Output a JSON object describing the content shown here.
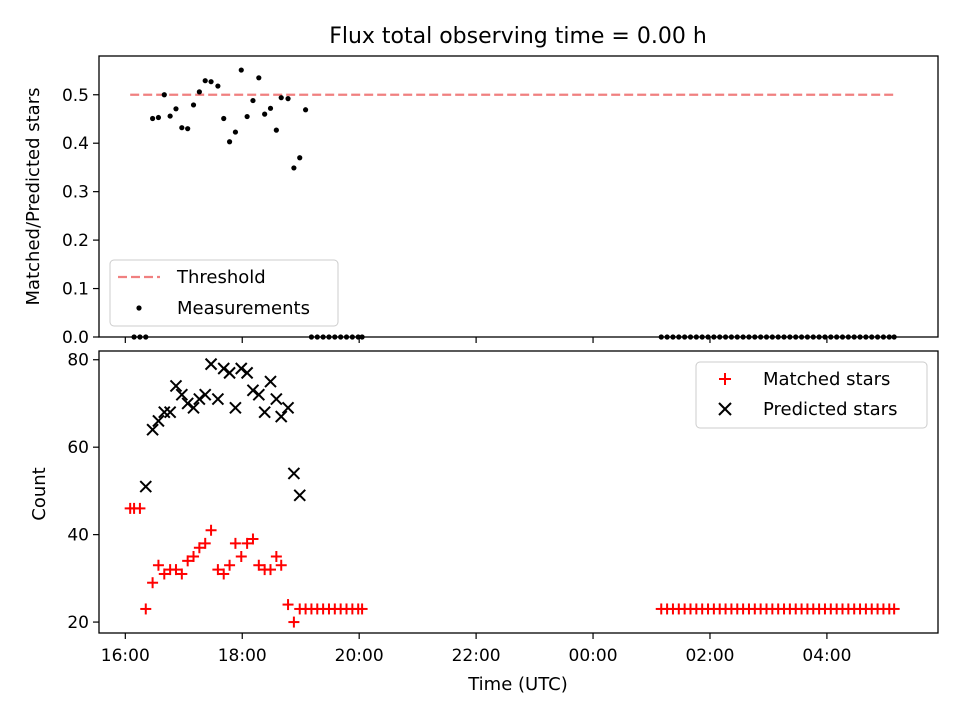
{
  "figure": {
    "title": "Flux total observing time = 0.00 h"
  },
  "chart_data": [
    {
      "type": "scatter",
      "panel": "top",
      "ylabel": "Matched/Predicted stars",
      "ylim": [
        0,
        0.58
      ],
      "yticks": [
        0.0,
        0.1,
        0.2,
        0.3,
        0.4,
        0.5
      ],
      "ytick_labels": [
        "0.0",
        "0.1",
        "0.2",
        "0.3",
        "0.4",
        "0.5"
      ],
      "grid": false,
      "legend": {
        "placement": "lower-left",
        "entries": [
          "Threshold",
          "Measurements"
        ]
      },
      "threshold": {
        "name": "Threshold",
        "value": 0.5,
        "x_start": "16:05",
        "x_end": "05:11",
        "color": "#f08080",
        "style": "dashed"
      },
      "series": [
        {
          "name": "Measurements",
          "marker": "dot",
          "color": "#000000",
          "x": [
            "16:09",
            "16:15",
            "16:21",
            "16:28",
            "16:34",
            "16:40",
            "16:46",
            "16:52",
            "16:58",
            "17:04",
            "17:10",
            "17:16",
            "17:22",
            "17:28",
            "17:35",
            "17:41",
            "17:47",
            "17:53",
            "17:59",
            "18:05",
            "18:11",
            "18:17",
            "18:23",
            "18:29",
            "18:35",
            "18:40",
            "18:47",
            "18:53",
            "18:59",
            "19:05",
            "19:11",
            "19:17",
            "19:23",
            "19:29",
            "19:35",
            "19:41",
            "19:47",
            "19:53",
            "19:59",
            "20:03",
            "01:10",
            "01:16",
            "01:22",
            "01:28",
            "01:34",
            "01:40",
            "01:46",
            "01:52",
            "01:58",
            "02:04",
            "02:10",
            "02:16",
            "02:22",
            "02:28",
            "02:34",
            "02:40",
            "02:46",
            "02:52",
            "02:58",
            "03:04",
            "03:10",
            "03:16",
            "03:22",
            "03:28",
            "03:34",
            "03:40",
            "03:46",
            "03:52",
            "03:58",
            "04:04",
            "04:10",
            "04:16",
            "04:22",
            "04:28",
            "04:34",
            "04:40",
            "04:46",
            "04:52",
            "04:58",
            "05:04",
            "05:09"
          ],
          "y": [
            0.0,
            0.0,
            0.0,
            0.451,
            0.453,
            0.5,
            0.456,
            0.471,
            0.432,
            0.43,
            0.479,
            0.506,
            0.529,
            0.527,
            0.518,
            0.451,
            0.403,
            0.423,
            0.551,
            0.455,
            0.488,
            0.535,
            0.46,
            0.472,
            0.427,
            0.494,
            0.492,
            0.349,
            0.37,
            0.469,
            0.0,
            0.0,
            0.0,
            0.0,
            0.0,
            0.0,
            0.0,
            0.0,
            0.0,
            0.0,
            0.0,
            0.0,
            0.0,
            0.0,
            0.0,
            0.0,
            0.0,
            0.0,
            0.0,
            0.0,
            0.0,
            0.0,
            0.0,
            0.0,
            0.0,
            0.0,
            0.0,
            0.0,
            0.0,
            0.0,
            0.0,
            0.0,
            0.0,
            0.0,
            0.0,
            0.0,
            0.0,
            0.0,
            0.0,
            0.0,
            0.0,
            0.0,
            0.0,
            0.0,
            0.0,
            0.0,
            0.0,
            0.0,
            0.0,
            0.0,
            0.0
          ]
        }
      ]
    },
    {
      "type": "scatter",
      "panel": "bottom",
      "xlabel": "Time (UTC)",
      "ylabel": "Count",
      "ylim": [
        17.5,
        82
      ],
      "yticks": [
        20,
        40,
        60,
        80
      ],
      "ytick_labels": [
        "20",
        "40",
        "60",
        "80"
      ],
      "xlim": [
        "15:33",
        "05:54"
      ],
      "xticks": [
        "16:00",
        "18:00",
        "20:00",
        "22:00",
        "00:00",
        "02:00",
        "04:00"
      ],
      "xtick_labels": [
        "16:00",
        "18:00",
        "20:00",
        "22:00",
        "00:00",
        "02:00",
        "04:00"
      ],
      "grid": false,
      "legend": {
        "placement": "top-right",
        "entries": [
          "Matched stars",
          "Predicted stars"
        ]
      },
      "series": [
        {
          "name": "Matched stars",
          "marker": "plus",
          "color": "#ff0000",
          "x": [
            "16:05",
            "16:09",
            "16:15",
            "16:21",
            "16:28",
            "16:34",
            "16:40",
            "16:46",
            "16:52",
            "16:58",
            "17:04",
            "17:10",
            "17:16",
            "17:22",
            "17:28",
            "17:35",
            "17:41",
            "17:47",
            "17:53",
            "17:59",
            "18:05",
            "18:11",
            "18:17",
            "18:23",
            "18:29",
            "18:35",
            "18:40",
            "18:47",
            "18:53",
            "18:59",
            "19:05",
            "19:11",
            "19:17",
            "19:23",
            "19:29",
            "19:35",
            "19:41",
            "19:47",
            "19:53",
            "19:59",
            "20:03",
            "01:10",
            "01:16",
            "01:22",
            "01:28",
            "01:34",
            "01:40",
            "01:46",
            "01:52",
            "01:58",
            "02:04",
            "02:10",
            "02:16",
            "02:22",
            "02:28",
            "02:34",
            "02:40",
            "02:46",
            "02:52",
            "02:58",
            "03:04",
            "03:10",
            "03:16",
            "03:22",
            "03:28",
            "03:34",
            "03:40",
            "03:46",
            "03:52",
            "03:58",
            "04:04",
            "04:10",
            "04:16",
            "04:22",
            "04:28",
            "04:34",
            "04:40",
            "04:46",
            "04:52",
            "04:58",
            "05:04",
            "05:09"
          ],
          "y": [
            46,
            46,
            46,
            23,
            29,
            33,
            31,
            32,
            32,
            31,
            34,
            35,
            37,
            38,
            41,
            32,
            31,
            33,
            38,
            35,
            38,
            39,
            33,
            32,
            32,
            35,
            33,
            24,
            20,
            23,
            23,
            23,
            23,
            23,
            23,
            23,
            23,
            23,
            23,
            23,
            23,
            23,
            23,
            23,
            23,
            23,
            23,
            23,
            23,
            23,
            23,
            23,
            23,
            23,
            23,
            23,
            23,
            23,
            23,
            23,
            23,
            23,
            23,
            23,
            23,
            23,
            23,
            23,
            23,
            23,
            23,
            23,
            23,
            23,
            23,
            23,
            23,
            23,
            23,
            23,
            23,
            23
          ]
        },
        {
          "name": "Predicted stars",
          "marker": "x",
          "color": "#000000",
          "x": [
            "16:21",
            "16:28",
            "16:34",
            "16:40",
            "16:46",
            "16:52",
            "16:58",
            "17:04",
            "17:10",
            "17:16",
            "17:22",
            "17:28",
            "17:35",
            "17:41",
            "17:47",
            "17:53",
            "17:59",
            "18:05",
            "18:11",
            "18:17",
            "18:23",
            "18:29",
            "18:35",
            "18:40",
            "18:47",
            "18:53",
            "18:59"
          ],
          "y": [
            51,
            64,
            66,
            68,
            68,
            74,
            72,
            70,
            69,
            71,
            72,
            79,
            71,
            78,
            77,
            69,
            78,
            77,
            73,
            72,
            68,
            75,
            71,
            67,
            69,
            54,
            49
          ]
        }
      ]
    }
  ]
}
